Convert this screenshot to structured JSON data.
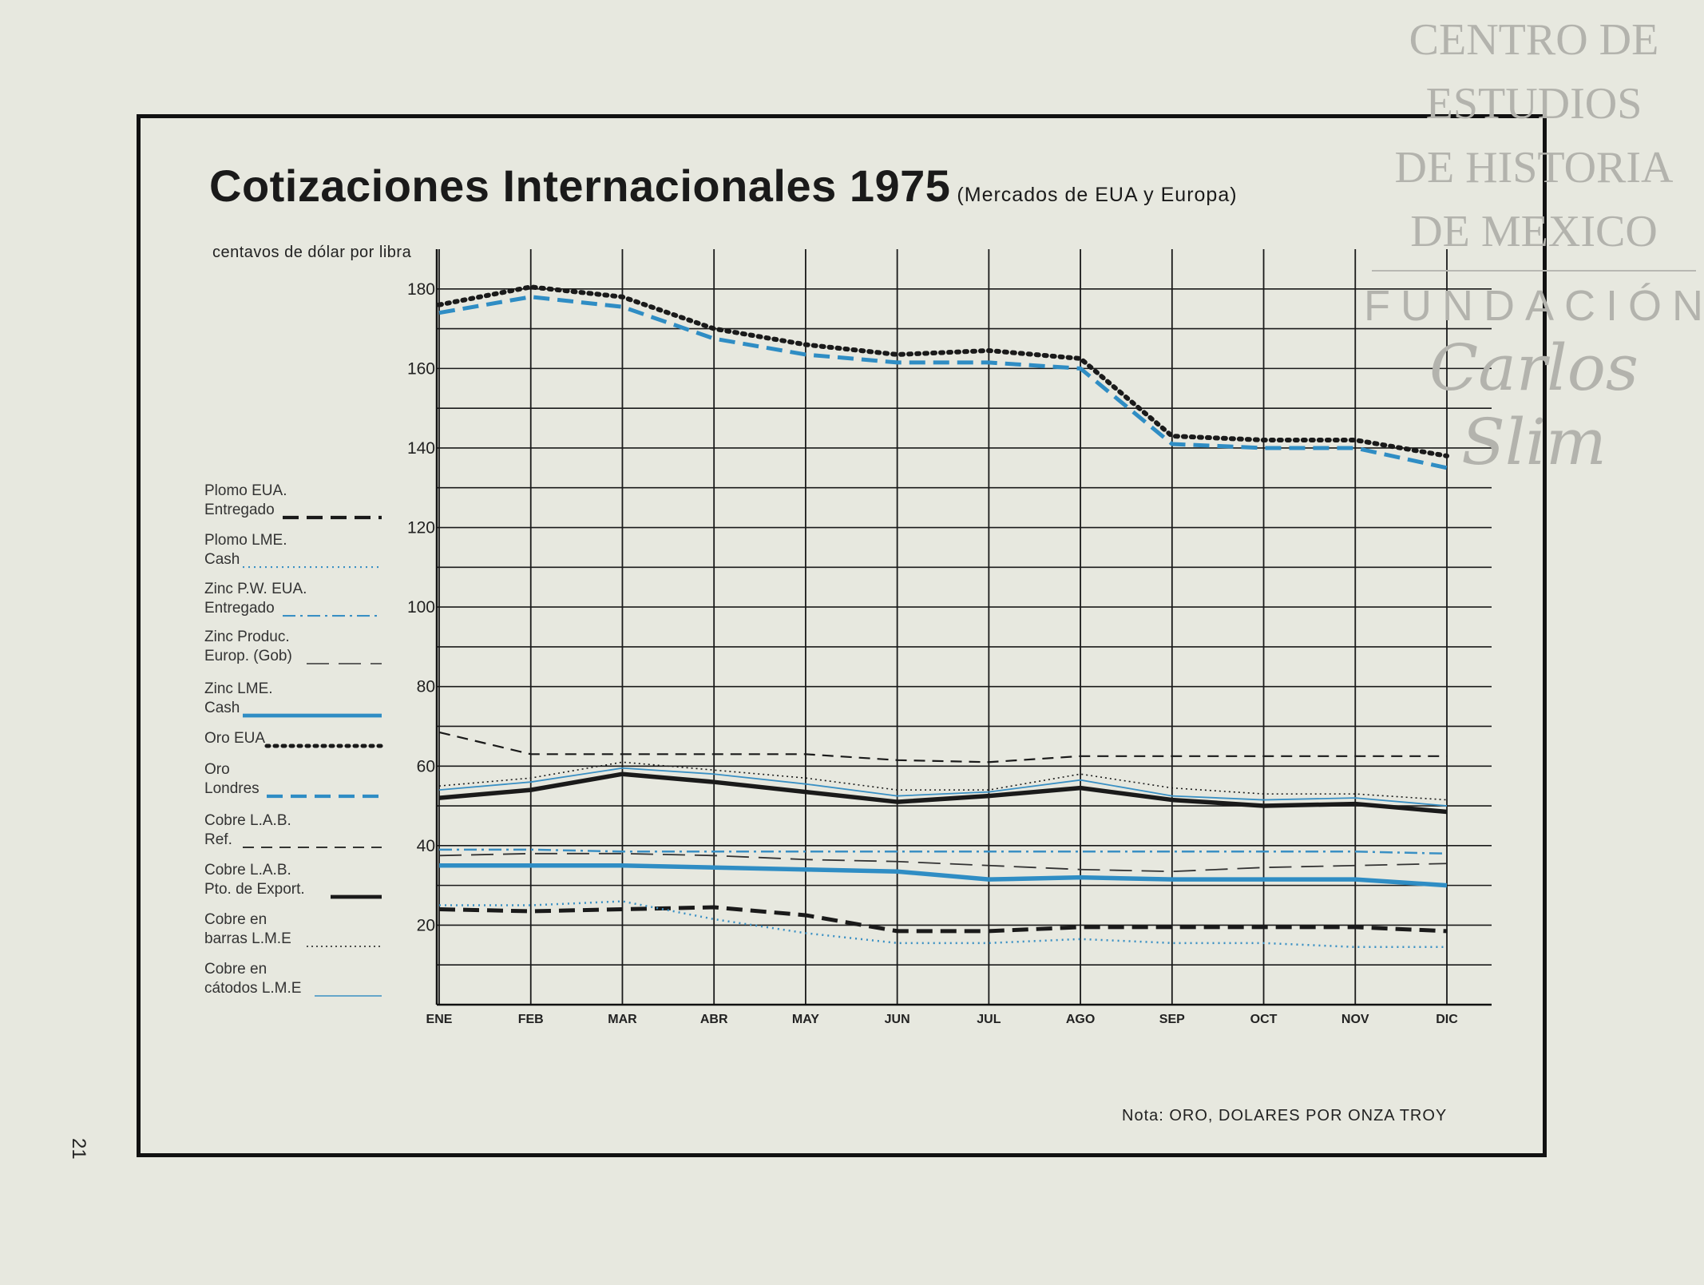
{
  "watermark": {
    "lines": [
      "CENTRO DE",
      "ESTUDIOS",
      "DE HISTORIA",
      "DE MEXICO"
    ],
    "foundation": "FUNDACIÓN",
    "signature": "Carlos Slim"
  },
  "page_number": "21",
  "note": "Nota: ORO, DOLARES POR ONZA TROY",
  "chart_data": {
    "type": "line",
    "title": "Cotizaciones Internacionales 1975",
    "subtitle": "(Mercados de EUA y Europa)",
    "ylabel": "centavos de dólar por libra",
    "xlabel": "",
    "ylim": [
      0,
      190
    ],
    "yticks": [
      20,
      40,
      60,
      80,
      100,
      120,
      140,
      160,
      180
    ],
    "grid": true,
    "legend_position": "left",
    "categories": [
      "ENE",
      "FEB",
      "MAR",
      "ABR",
      "MAY",
      "JUN",
      "JUL",
      "AGO",
      "SEP",
      "OCT",
      "NOV",
      "DIC"
    ],
    "series": [
      {
        "name": "Plomo EUA. Entregado",
        "label_lines": [
          "Plomo EUA.",
          "Entregado"
        ],
        "color": "#1a1a1a",
        "style": "dashed-thick",
        "values": [
          24,
          23.5,
          24,
          24.5,
          22.5,
          18.5,
          18.5,
          19.5,
          19.5,
          19.5,
          19.5,
          18.5
        ]
      },
      {
        "name": "Plomo LME. Cash",
        "label_lines": [
          "Plomo LME.",
          "Cash"
        ],
        "color": "#3a90c4",
        "style": "dotted",
        "values": [
          25,
          25,
          26,
          21.5,
          18,
          15.5,
          15.5,
          16.5,
          15.5,
          15.5,
          14.5,
          14.5
        ]
      },
      {
        "name": "Zinc P.W. EUA. Entregado",
        "label_lines": [
          "Zinc P.W. EUA.",
          "Entregado"
        ],
        "color": "#3a90c4",
        "style": "dashdot",
        "values": [
          39,
          39,
          38.5,
          38.5,
          38.5,
          38.5,
          38.5,
          38.5,
          38.5,
          38.5,
          38.5,
          38
        ]
      },
      {
        "name": "Zinc Produc. Europ. (Gob)",
        "label_lines": [
          "Zinc Produc.",
          "Europ. (Gob)"
        ],
        "color": "#333333",
        "style": "longdash",
        "values": [
          37.5,
          38,
          38,
          37.5,
          36.5,
          36,
          35,
          34,
          33.5,
          34.5,
          35,
          35.5
        ]
      },
      {
        "name": "Zinc LME. Cash",
        "label_lines": [
          "Zinc LME.",
          "Cash"
        ],
        "color": "#2f8dc4",
        "style": "solid-thick",
        "values": [
          35,
          35,
          35,
          34.5,
          34,
          33.5,
          31.5,
          32,
          31.5,
          31.5,
          31.5,
          30
        ]
      },
      {
        "name": "Oro EUA",
        "label_lines": [
          "Oro EUA"
        ],
        "color": "#1a1a1a",
        "style": "dotted-thick",
        "values": [
          176,
          180.5,
          178,
          170,
          166,
          163.5,
          164.5,
          162.5,
          143,
          142,
          142,
          138
        ]
      },
      {
        "name": "Oro Londres",
        "label_lines": [
          "Oro",
          "Londres"
        ],
        "color": "#2f8dc4",
        "style": "dashed-thick",
        "values": [
          174,
          178,
          175.5,
          167.5,
          163.5,
          161.5,
          161.5,
          160,
          141,
          140,
          140,
          135
        ]
      },
      {
        "name": "Cobre L.A.B. Ref.",
        "label_lines": [
          "Cobre L.A.B.",
          "Ref."
        ],
        "color": "#1a1a1a",
        "style": "dashed",
        "values": [
          68.5,
          63,
          63,
          63,
          63,
          61.5,
          61,
          62.5,
          62.5,
          62.5,
          62.5,
          62.5
        ]
      },
      {
        "name": "Cobre L.A.B. Pto. de Export.",
        "label_lines": [
          "Cobre L.A.B.",
          "Pto. de Export."
        ],
        "color": "#1a1a1a",
        "style": "solid-thick",
        "values": [
          52,
          54,
          58,
          56,
          53.5,
          51,
          52.5,
          54.5,
          51.5,
          50,
          50.5,
          48.5
        ]
      },
      {
        "name": "Cobre en barras L.M.E",
        "label_lines": [
          "Cobre en",
          "barras L.M.E"
        ],
        "color": "#1a1a1a",
        "style": "dotted-fine",
        "values": [
          55,
          57,
          61,
          59,
          57,
          54,
          54,
          58,
          54.5,
          53,
          53,
          51.5
        ]
      },
      {
        "name": "Cobre en cátodos L.M.E",
        "label_lines": [
          "Cobre en",
          "cátodos L.M.E"
        ],
        "color": "#3a90c4",
        "style": "solid-thin",
        "values": [
          54,
          56,
          59.5,
          58,
          55.5,
          52.5,
          53.5,
          56.5,
          52.5,
          51.5,
          52,
          50
        ]
      }
    ]
  }
}
